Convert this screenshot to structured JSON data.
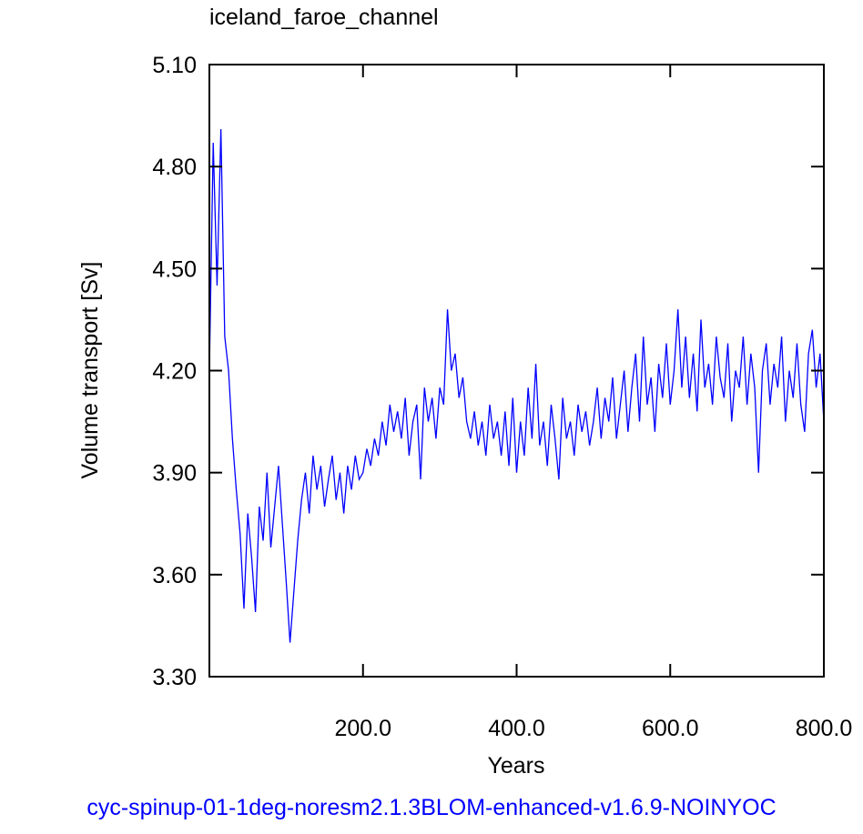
{
  "chart_data": {
    "type": "line",
    "title": "iceland_faroe_channel",
    "x_label": "Years",
    "y_label": "Volume transport [Sv]",
    "caption": "cyc-spinup-01-1deg-noresm2.1.3BLOM-enhanced-v1.6.9-NOINYOC",
    "color": "#0000ff",
    "xlim": [
      0,
      800
    ],
    "ylim": [
      3.3,
      5.1
    ],
    "xticks": [
      {
        "value": 200,
        "label": "200.0"
      },
      {
        "value": 400,
        "label": "400.0"
      },
      {
        "value": 600,
        "label": "600.0"
      },
      {
        "value": 800,
        "label": "800.0"
      }
    ],
    "yticks": [
      {
        "value": 3.3,
        "label": "3.30"
      },
      {
        "value": 3.6,
        "label": "3.60"
      },
      {
        "value": 3.9,
        "label": "3.90"
      },
      {
        "value": 4.2,
        "label": "4.20"
      },
      {
        "value": 4.5,
        "label": "4.50"
      },
      {
        "value": 4.8,
        "label": "4.80"
      },
      {
        "value": 5.1,
        "label": "5.10"
      }
    ],
    "x": [
      0,
      5,
      10,
      15,
      20,
      25,
      30,
      35,
      40,
      45,
      50,
      55,
      60,
      65,
      70,
      75,
      80,
      85,
      90,
      95,
      100,
      105,
      110,
      115,
      120,
      125,
      130,
      135,
      140,
      145,
      150,
      155,
      160,
      165,
      170,
      175,
      180,
      185,
      190,
      195,
      200,
      205,
      210,
      215,
      220,
      225,
      230,
      235,
      240,
      245,
      250,
      255,
      260,
      265,
      270,
      275,
      280,
      285,
      290,
      295,
      300,
      305,
      310,
      315,
      320,
      325,
      330,
      335,
      340,
      345,
      350,
      355,
      360,
      365,
      370,
      375,
      380,
      385,
      390,
      395,
      400,
      405,
      410,
      415,
      420,
      425,
      430,
      435,
      440,
      445,
      450,
      455,
      460,
      465,
      470,
      475,
      480,
      485,
      490,
      495,
      500,
      505,
      510,
      515,
      520,
      525,
      530,
      535,
      540,
      545,
      550,
      555,
      560,
      565,
      570,
      575,
      580,
      585,
      590,
      595,
      600,
      605,
      610,
      615,
      620,
      625,
      630,
      635,
      640,
      645,
      650,
      655,
      660,
      665,
      670,
      675,
      680,
      685,
      690,
      695,
      700,
      705,
      710,
      715,
      720,
      725,
      730,
      735,
      740,
      745,
      750,
      755,
      760,
      765,
      770,
      775,
      780,
      785,
      790,
      795,
      800
    ],
    "values": [
      4.2,
      4.87,
      4.45,
      4.91,
      4.3,
      4.2,
      4.0,
      3.85,
      3.72,
      3.5,
      3.78,
      3.65,
      3.49,
      3.8,
      3.7,
      3.9,
      3.68,
      3.8,
      3.92,
      3.75,
      3.58,
      3.4,
      3.55,
      3.7,
      3.82,
      3.9,
      3.78,
      3.95,
      3.85,
      3.92,
      3.8,
      3.88,
      3.95,
      3.82,
      3.9,
      3.78,
      3.92,
      3.85,
      3.95,
      3.88,
      3.9,
      3.97,
      3.92,
      4.0,
      3.95,
      4.05,
      3.98,
      4.1,
      4.02,
      4.08,
      4.0,
      4.12,
      3.95,
      4.05,
      4.1,
      3.88,
      4.15,
      4.05,
      4.12,
      4.0,
      4.15,
      4.1,
      4.38,
      4.2,
      4.25,
      4.12,
      4.18,
      4.05,
      4.0,
      4.08,
      3.98,
      4.05,
      3.95,
      4.1,
      4.0,
      4.05,
      3.95,
      4.08,
      3.92,
      4.12,
      3.9,
      4.05,
      3.95,
      4.15,
      4.0,
      4.22,
      3.98,
      4.05,
      3.92,
      4.1,
      4.0,
      3.88,
      4.12,
      4.0,
      4.05,
      3.95,
      4.1,
      4.02,
      4.08,
      3.98,
      4.05,
      4.15,
      4.0,
      4.12,
      4.05,
      4.18,
      4.0,
      4.1,
      4.2,
      4.02,
      4.15,
      4.25,
      4.05,
      4.3,
      4.1,
      4.18,
      4.02,
      4.22,
      4.12,
      4.28,
      4.1,
      4.2,
      4.38,
      4.15,
      4.3,
      4.12,
      4.25,
      4.08,
      4.35,
      4.15,
      4.22,
      4.1,
      4.3,
      4.18,
      4.12,
      4.28,
      4.05,
      4.2,
      4.15,
      4.3,
      4.1,
      4.25,
      4.15,
      3.9,
      4.2,
      4.28,
      4.1,
      4.22,
      4.15,
      4.3,
      4.05,
      4.2,
      4.12,
      4.28,
      4.1,
      4.02,
      4.25,
      4.32,
      4.15,
      4.25,
      4.05
    ]
  }
}
